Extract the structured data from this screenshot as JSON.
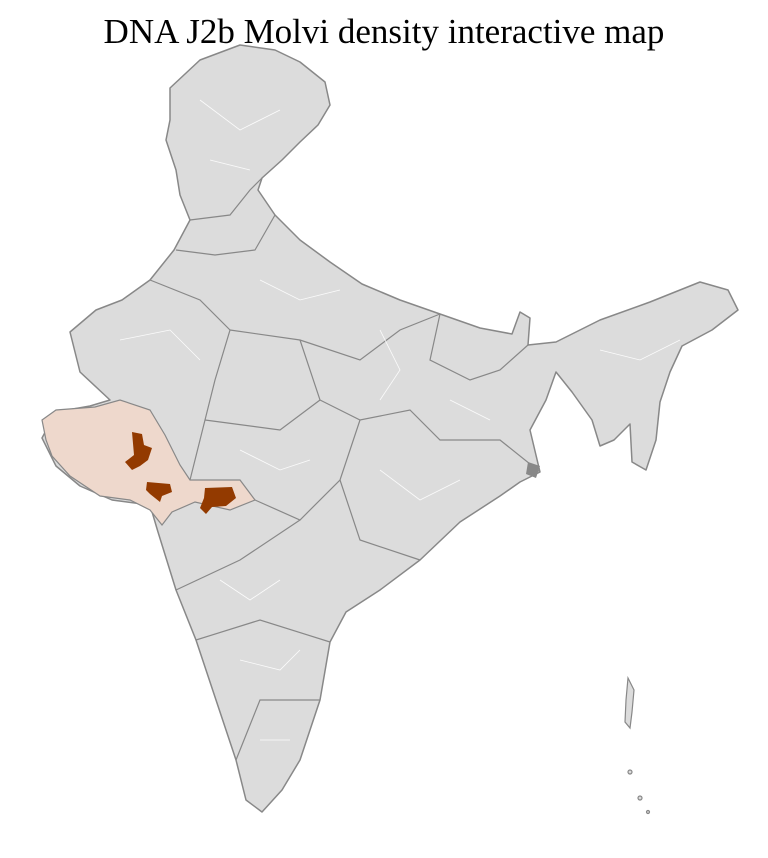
{
  "title": "DNA J2b Molvi density interactive map",
  "colors": {
    "land": "#dcdcdc",
    "border": "#888888",
    "district_border": "#ffffff",
    "low_density": "#eed8cc",
    "high_density": "#933a00"
  },
  "regions": [
    {
      "name": "Gujarat",
      "level": "low"
    },
    {
      "name": "Maharashtra north-west",
      "level": "low"
    },
    {
      "name": "Central Gujarat district",
      "level": "high"
    },
    {
      "name": "South Gujarat district",
      "level": "high"
    },
    {
      "name": "North Maharashtra district",
      "level": "high"
    }
  ]
}
